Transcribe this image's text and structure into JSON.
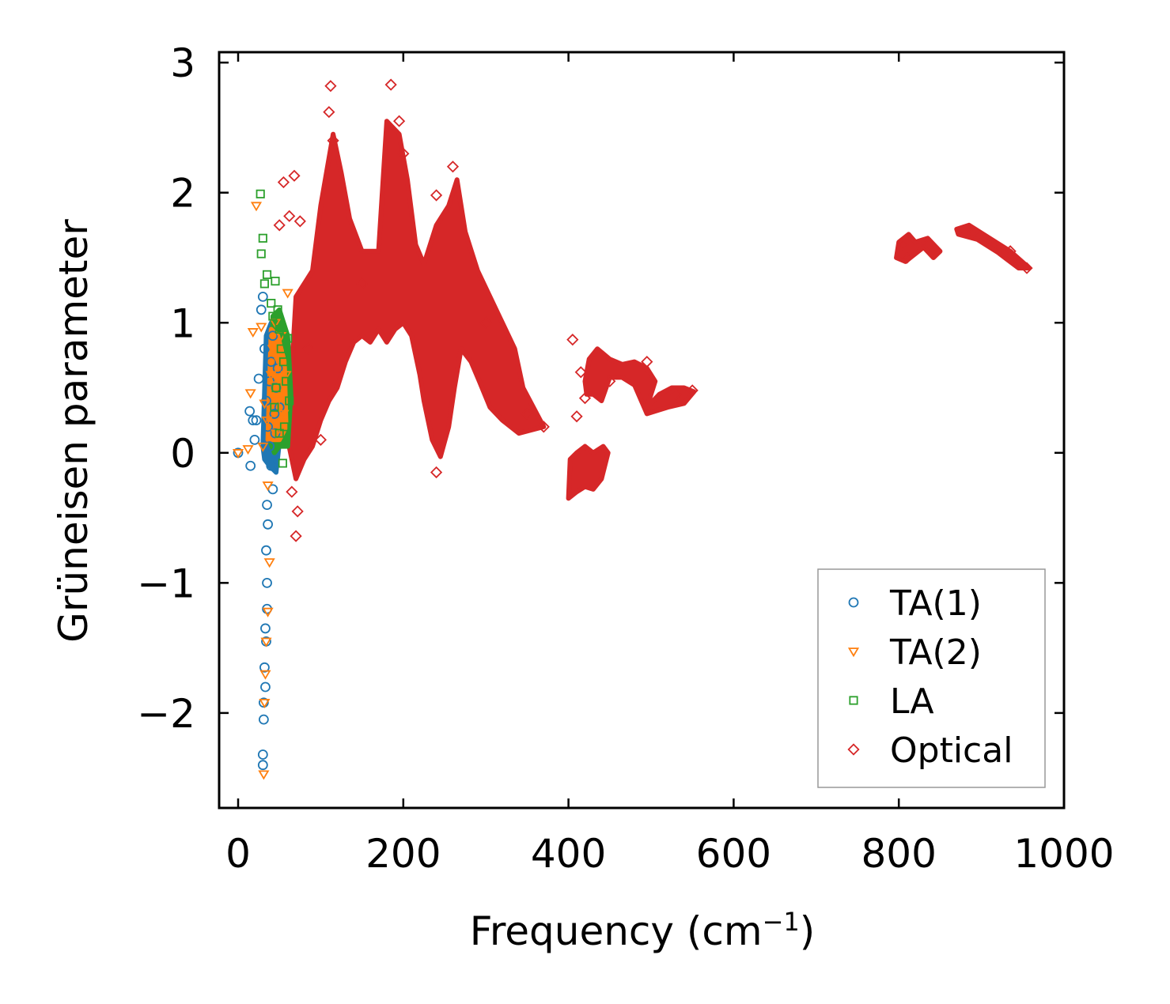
{
  "chart_data": {
    "type": "scatter",
    "title": "",
    "xlabel": "Frequency (cm",
    "xlabel_sup": "−1",
    "xlabel_close": ")",
    "ylabel": "Grüneisen parameter",
    "xlim": [
      -23,
      1000
    ],
    "ylim": [
      -2.73,
      3.08
    ],
    "xticks": [
      0,
      200,
      400,
      600,
      800,
      1000
    ],
    "xtick_labels": [
      "0",
      "200",
      "400",
      "600",
      "800",
      "1000"
    ],
    "yticks": [
      -2,
      -1,
      0,
      1,
      2,
      3
    ],
    "ytick_labels": [
      "−2",
      "−1",
      "0",
      "1",
      "2",
      "3"
    ],
    "legend_position": "lower-right",
    "series": [
      {
        "name": "TA(1)",
        "marker": "circle",
        "color": "#1f77b4",
        "points": [
          [
            0,
            0
          ],
          [
            15,
            -0.1
          ],
          [
            20,
            0.1
          ],
          [
            22,
            0.25
          ],
          [
            25,
            0.57
          ],
          [
            28,
            1.1
          ],
          [
            30,
            1.2
          ],
          [
            32,
            0.8
          ],
          [
            34,
            0.4
          ],
          [
            36,
            0.2
          ],
          [
            38,
            0.55
          ],
          [
            40,
            0.7
          ],
          [
            42,
            0.9
          ],
          [
            44,
            0.3
          ],
          [
            46,
            0.5
          ],
          [
            48,
            0.65
          ],
          [
            50,
            0.35
          ],
          [
            35,
            -0.4
          ],
          [
            36,
            -0.55
          ],
          [
            34,
            -0.75
          ],
          [
            35,
            -1.0
          ],
          [
            35,
            -1.2
          ],
          [
            33,
            -1.35
          ],
          [
            34,
            -1.45
          ],
          [
            32,
            -1.65
          ],
          [
            33,
            -1.8
          ],
          [
            31,
            -1.92
          ],
          [
            31,
            -2.05
          ],
          [
            30,
            -2.32
          ],
          [
            30,
            -2.4
          ],
          [
            38,
            0.05
          ],
          [
            40,
            -0.1
          ],
          [
            42,
            -0.28
          ],
          [
            45,
            0.15
          ],
          [
            14,
            0.32
          ],
          [
            18,
            0.25
          ]
        ]
      },
      {
        "name": "TA(2)",
        "marker": "triangle-down",
        "color": "#ff7f0e",
        "points": [
          [
            0,
            0
          ],
          [
            12,
            0.03
          ],
          [
            15,
            0.46
          ],
          [
            18,
            0.93
          ],
          [
            22,
            1.9
          ],
          [
            28,
            0.97
          ],
          [
            30,
            0.05
          ],
          [
            32,
            0.38
          ],
          [
            36,
            -0.25
          ],
          [
            38,
            -0.84
          ],
          [
            36,
            -1.22
          ],
          [
            34,
            -1.45
          ],
          [
            33,
            -1.7
          ],
          [
            32,
            -1.92
          ],
          [
            31,
            -2.47
          ],
          [
            40,
            0.6
          ],
          [
            42,
            0.8
          ],
          [
            45,
            1.0
          ],
          [
            48,
            0.4
          ],
          [
            50,
            0.7
          ],
          [
            52,
            0.9
          ],
          [
            55,
            0.3
          ],
          [
            58,
            0.6
          ],
          [
            60,
            1.23
          ],
          [
            46,
            0.15
          ],
          [
            44,
            0.52
          ],
          [
            35,
            0.25
          ]
        ]
      },
      {
        "name": "LA",
        "marker": "square",
        "color": "#2ca02c",
        "points": [
          [
            27,
            1.99
          ],
          [
            30,
            1.65
          ],
          [
            28,
            1.53
          ],
          [
            32,
            1.3
          ],
          [
            35,
            1.37
          ],
          [
            40,
            1.15
          ],
          [
            45,
            1.32
          ],
          [
            48,
            1.1
          ],
          [
            50,
            0.95
          ],
          [
            52,
            0.8
          ],
          [
            55,
            0.7
          ],
          [
            58,
            0.55
          ],
          [
            60,
            0.88
          ],
          [
            62,
            0.4
          ],
          [
            56,
            0.2
          ],
          [
            54,
            -0.08
          ],
          [
            46,
            0.5
          ],
          [
            44,
            0.35
          ],
          [
            50,
            0.15
          ],
          [
            42,
            1.05
          ]
        ]
      },
      {
        "name": "Optical",
        "marker": "diamond",
        "color": "#d62728",
        "points": [
          [
            112,
            2.82
          ],
          [
            185,
            2.83
          ],
          [
            195,
            2.55
          ],
          [
            68,
            2.13
          ],
          [
            55,
            2.08
          ],
          [
            62,
            1.82
          ],
          [
            75,
            1.78
          ],
          [
            50,
            1.75
          ],
          [
            115,
            2.4
          ],
          [
            110,
            2.62
          ],
          [
            200,
            2.3
          ],
          [
            260,
            2.2
          ],
          [
            240,
            1.98
          ],
          [
            70,
            -0.64
          ],
          [
            72,
            -0.45
          ],
          [
            65,
            -0.3
          ],
          [
            240,
            -0.15
          ],
          [
            405,
            0.87
          ],
          [
            410,
            0.28
          ],
          [
            415,
            0.62
          ],
          [
            420,
            0.42
          ],
          [
            495,
            0.7
          ],
          [
            805,
            1.6
          ],
          [
            810,
            1.5
          ],
          [
            835,
            1.58
          ],
          [
            890,
            1.7
          ],
          [
            935,
            1.55
          ],
          [
            955,
            1.42
          ],
          [
            85,
            0.8
          ],
          [
            100,
            0.1
          ],
          [
            150,
            1.3
          ],
          [
            300,
            1.0
          ],
          [
            350,
            0.3
          ],
          [
            370,
            0.2
          ],
          [
            450,
            0.55
          ],
          [
            530,
            0.45
          ],
          [
            550,
            0.48
          ]
        ]
      }
    ],
    "dense_regions": [
      {
        "series": "Optical",
        "outline": [
          [
            60,
            0.1
          ],
          [
            70,
            1.2
          ],
          [
            90,
            1.4
          ],
          [
            100,
            1.9
          ],
          [
            115,
            2.45
          ],
          [
            125,
            2.15
          ],
          [
            135,
            1.8
          ],
          [
            150,
            1.55
          ],
          [
            170,
            1.55
          ],
          [
            180,
            2.55
          ],
          [
            195,
            2.45
          ],
          [
            205,
            2.1
          ],
          [
            215,
            1.6
          ],
          [
            225,
            1.45
          ],
          [
            240,
            1.75
          ],
          [
            255,
            1.9
          ],
          [
            265,
            2.1
          ],
          [
            275,
            1.7
          ],
          [
            290,
            1.4
          ],
          [
            305,
            1.2
          ],
          [
            320,
            1.0
          ],
          [
            335,
            0.8
          ],
          [
            345,
            0.5
          ],
          [
            370,
            0.2
          ],
          [
            340,
            0.15
          ],
          [
            320,
            0.25
          ],
          [
            305,
            0.35
          ],
          [
            292,
            0.55
          ],
          [
            282,
            0.7
          ],
          [
            270,
            0.8
          ],
          [
            262,
            0.5
          ],
          [
            255,
            0.2
          ],
          [
            245,
            -0.03
          ],
          [
            235,
            0.1
          ],
          [
            225,
            0.4
          ],
          [
            220,
            0.6
          ],
          [
            210,
            0.9
          ],
          [
            200,
            1.0
          ],
          [
            190,
            0.95
          ],
          [
            180,
            0.85
          ],
          [
            170,
            0.95
          ],
          [
            160,
            0.85
          ],
          [
            150,
            0.9
          ],
          [
            140,
            0.85
          ],
          [
            130,
            0.7
          ],
          [
            120,
            0.5
          ],
          [
            110,
            0.4
          ],
          [
            100,
            0.25
          ],
          [
            90,
            0.05
          ],
          [
            80,
            -0.05
          ],
          [
            70,
            -0.2
          ]
        ]
      },
      {
        "series": "Optical",
        "outline": [
          [
            400,
            -0.35
          ],
          [
            402,
            -0.05
          ],
          [
            410,
            0.0
          ],
          [
            420,
            0.05
          ],
          [
            430,
            0.0
          ],
          [
            442,
            0.05
          ],
          [
            448,
            0.0
          ],
          [
            440,
            -0.2
          ],
          [
            430,
            -0.28
          ],
          [
            420,
            -0.26
          ],
          [
            410,
            -0.3
          ]
        ]
      },
      {
        "series": "Optical",
        "outline": [
          [
            420,
            0.55
          ],
          [
            425,
            0.72
          ],
          [
            435,
            0.8
          ],
          [
            450,
            0.72
          ],
          [
            465,
            0.68
          ],
          [
            480,
            0.7
          ],
          [
            495,
            0.65
          ],
          [
            505,
            0.55
          ],
          [
            495,
            0.35
          ],
          [
            510,
            0.45
          ],
          [
            525,
            0.5
          ],
          [
            540,
            0.5
          ],
          [
            552,
            0.47
          ],
          [
            540,
            0.38
          ],
          [
            520,
            0.35
          ],
          [
            505,
            0.32
          ],
          [
            495,
            0.3
          ],
          [
            480,
            0.52
          ],
          [
            465,
            0.58
          ],
          [
            450,
            0.58
          ],
          [
            440,
            0.4
          ],
          [
            430,
            0.45
          ],
          [
            422,
            0.45
          ]
        ]
      },
      {
        "series": "Optical",
        "outline": [
          [
            797,
            1.5
          ],
          [
            800,
            1.62
          ],
          [
            812,
            1.68
          ],
          [
            820,
            1.62
          ],
          [
            835,
            1.65
          ],
          [
            850,
            1.55
          ],
          [
            842,
            1.5
          ],
          [
            830,
            1.58
          ],
          [
            818,
            1.52
          ],
          [
            808,
            1.47
          ]
        ]
      },
      {
        "series": "Optical",
        "outline": [
          [
            870,
            1.72
          ],
          [
            885,
            1.75
          ],
          [
            910,
            1.65
          ],
          [
            935,
            1.55
          ],
          [
            958,
            1.42
          ],
          [
            945,
            1.42
          ],
          [
            920,
            1.54
          ],
          [
            895,
            1.64
          ],
          [
            872,
            1.68
          ]
        ]
      },
      {
        "series": "TA(1)",
        "outline": [
          [
            30,
            0.05
          ],
          [
            34,
            0.9
          ],
          [
            40,
            1.0
          ],
          [
            46,
            0.95
          ],
          [
            50,
            0.6
          ],
          [
            52,
            0.2
          ],
          [
            46,
            -0.15
          ],
          [
            38,
            -0.1
          ],
          [
            32,
            -0.05
          ]
        ]
      },
      {
        "series": "LA",
        "outline": [
          [
            38,
            0.1
          ],
          [
            42,
            1.05
          ],
          [
            50,
            1.1
          ],
          [
            60,
            0.9
          ],
          [
            64,
            0.45
          ],
          [
            60,
            0.05
          ],
          [
            50,
            0.05
          ],
          [
            44,
            0.0
          ]
        ]
      },
      {
        "series": "TA(2)",
        "outline": [
          [
            36,
            0.1
          ],
          [
            40,
            0.95
          ],
          [
            48,
            0.9
          ],
          [
            56,
            0.7
          ],
          [
            58,
            0.2
          ],
          [
            50,
            0.1
          ]
        ]
      }
    ]
  }
}
